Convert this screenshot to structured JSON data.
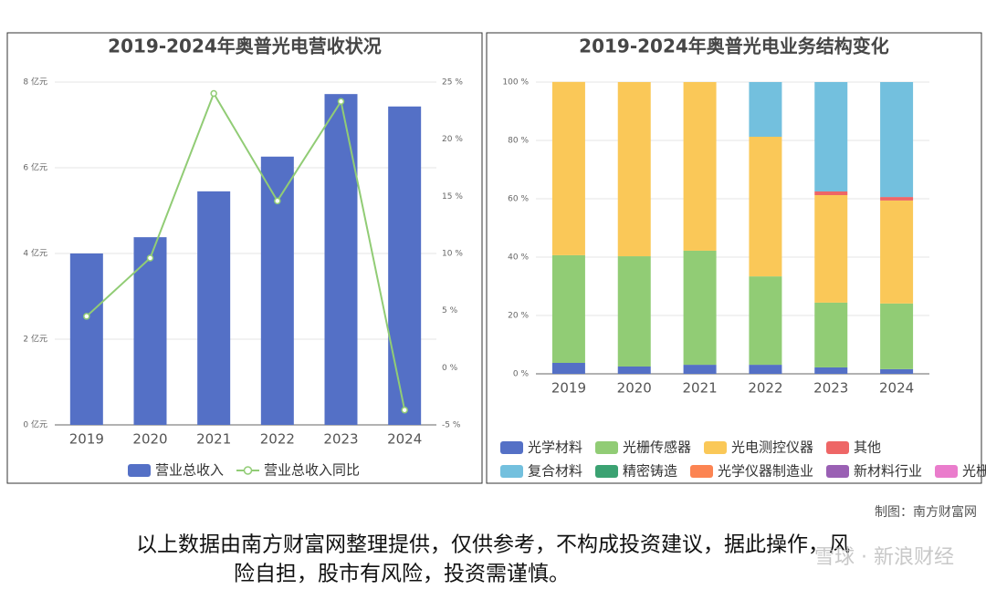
{
  "chart_data": [
    {
      "type": "bar",
      "title": "2019-2024年奥普光电营收状况",
      "categories": [
        "2019",
        "2020",
        "2021",
        "2022",
        "2023",
        "2024"
      ],
      "series": [
        {
          "name": "营业总收入",
          "color": "#5470c6",
          "values": [
            4.0,
            4.38,
            5.45,
            6.26,
            7.72,
            7.43
          ]
        },
        {
          "name": "营业总收入同比",
          "color": "#91cc75",
          "type": "line",
          "axis": "y2",
          "values": [
            4.5,
            9.6,
            24.0,
            14.6,
            23.3,
            -3.7
          ]
        }
      ],
      "ylim": [
        0,
        8
      ],
      "yticks": [
        {
          "value": 0,
          "label": "0 亿元"
        },
        {
          "value": 2,
          "label": "2 亿元"
        },
        {
          "value": 4,
          "label": "4 亿元"
        },
        {
          "value": 6,
          "label": "6 亿元"
        },
        {
          "value": 8,
          "label": "8 亿元"
        }
      ],
      "y2lim": [
        -5,
        25
      ],
      "y2ticks": [
        {
          "value": -5,
          "label": "-5 %"
        },
        {
          "value": 0,
          "label": "0 %"
        },
        {
          "value": 5,
          "label": "5 %"
        },
        {
          "value": 10,
          "label": "10 %"
        },
        {
          "value": 15,
          "label": "15 %"
        },
        {
          "value": 20,
          "label": "20 %"
        },
        {
          "value": 25,
          "label": "25 %"
        }
      ],
      "grid": true
    },
    {
      "type": "stacked_bar",
      "title": "2019-2024年奥普光电业务结构变化",
      "categories": [
        "2019",
        "2020",
        "2021",
        "2022",
        "2023",
        "2024"
      ],
      "series": [
        {
          "name": "光学材料",
          "color": "#5470c6",
          "values": [
            3.75,
            2.5,
            3.1,
            3.1,
            2.2,
            1.6
          ]
        },
        {
          "name": "光栅传感器",
          "color": "#91cc75",
          "values": [
            36.9,
            37.8,
            39.1,
            30.3,
            22.2,
            22.5
          ]
        },
        {
          "name": "光电测控仪器",
          "color": "#fac858",
          "values": [
            59.4,
            59.7,
            57.8,
            47.85,
            36.85,
            35.3
          ]
        },
        {
          "name": "其他",
          "color": "#ee6666",
          "values": [
            0,
            0,
            0,
            0,
            1.25,
            1.2
          ]
        },
        {
          "name": "复合材料",
          "color": "#73c0de",
          "values": [
            0,
            0,
            0,
            18.75,
            37.5,
            39.4
          ]
        },
        {
          "name": "精密铸造",
          "color": "#3ba272",
          "values": [
            0,
            0,
            0,
            0,
            0,
            0
          ]
        },
        {
          "name": "光学仪器制造业",
          "color": "#fc8452",
          "values": [
            0,
            0,
            0,
            0,
            0,
            0
          ]
        },
        {
          "name": "新材料行业",
          "color": "#9a60b4",
          "values": [
            0,
            0,
            0,
            0,
            0,
            0
          ]
        },
        {
          "name": "光栅传感类产品",
          "color": "#ea7ccc",
          "values": [
            0,
            0,
            0,
            0,
            0,
            0
          ]
        }
      ],
      "ylim": [
        0,
        100
      ],
      "yticks": [
        {
          "value": 0,
          "label": "0 %"
        },
        {
          "value": 20,
          "label": "20 %"
        },
        {
          "value": 40,
          "label": "40 %"
        },
        {
          "value": 60,
          "label": "60 %"
        },
        {
          "value": 80,
          "label": "80 %"
        },
        {
          "value": 100,
          "label": "100 %"
        }
      ],
      "grid": true
    }
  ],
  "footer": {
    "credit": "制图：南方财富网",
    "disclaimer": [
      "以上数据由南方财富网整理提供，仅供参考，不构成投资建议，据此操作，风",
      "险自担，股市有风险，投资需谨慎。"
    ],
    "watermark": "雪球 · 新浪财经"
  }
}
